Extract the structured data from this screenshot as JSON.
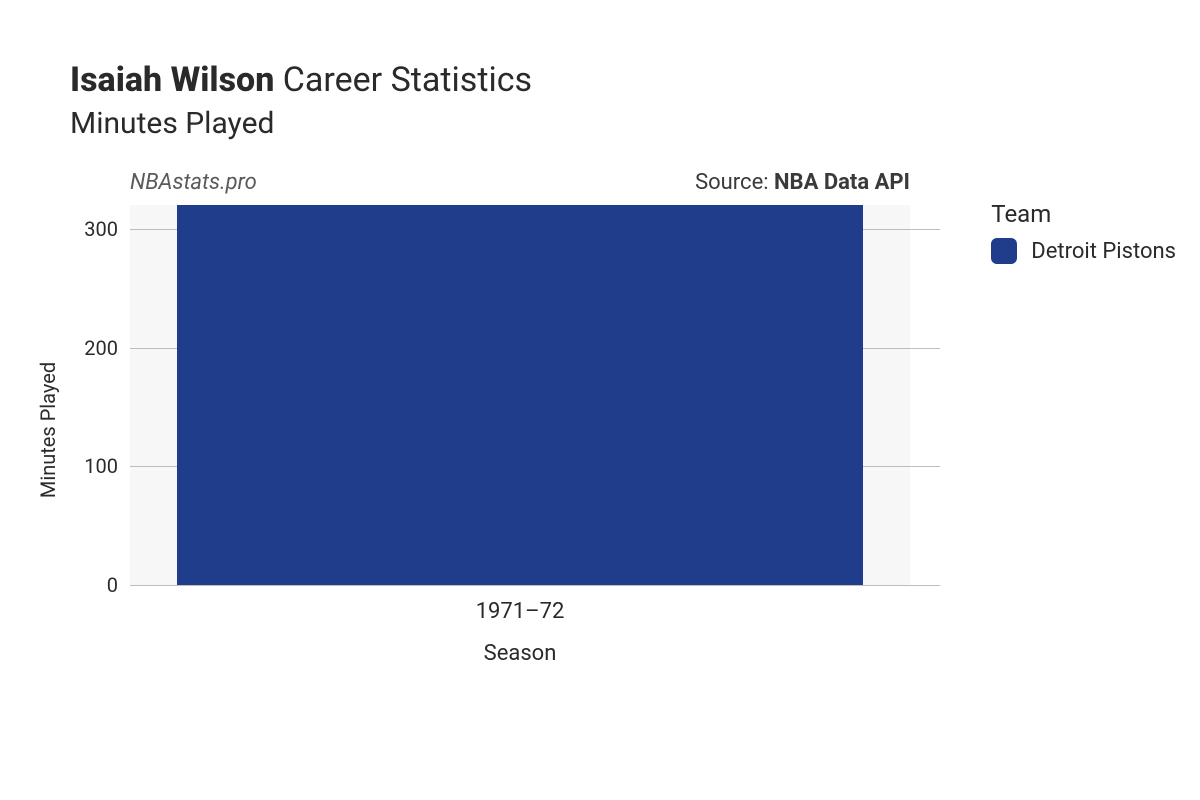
{
  "title": {
    "player": "Isaiah Wilson",
    "suffix": "Career Statistics",
    "metric": "Minutes Played"
  },
  "subheader": {
    "site": "NBAstats.pro",
    "source_prefix": "Source: ",
    "source_name": "NBA Data API"
  },
  "legend": {
    "title": "Team",
    "items": [
      {
        "label": "Detroit Pistons",
        "color": "#1f3d8a"
      }
    ]
  },
  "chart": {
    "type": "bar",
    "ylabel": "Minutes Played",
    "xlabel": "Season",
    "ylim": [
      0,
      320
    ],
    "yticks": [
      0,
      100,
      200,
      300
    ],
    "categories": [
      "1971–72"
    ],
    "values": [
      320
    ],
    "bar_colors": [
      "#1f3d8a"
    ],
    "bar_width": 0.88,
    "background_color": "#f7f7f7",
    "grid_color": "#bdbdbd",
    "label_fontsize": 20,
    "tick_fontsize": 20
  }
}
